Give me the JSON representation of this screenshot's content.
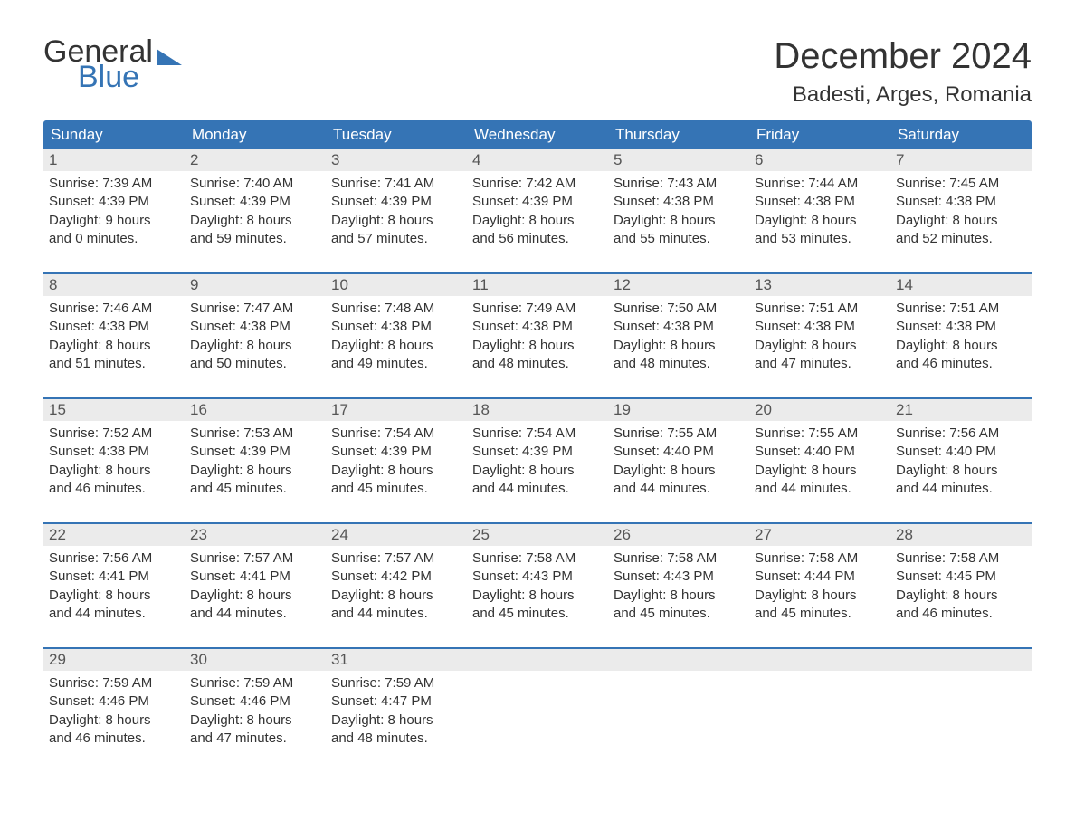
{
  "brand": {
    "general": "General",
    "blue": "Blue"
  },
  "title": "December 2024",
  "location": "Badesti, Arges, Romania",
  "colors": {
    "header_bg": "#3574b5",
    "header_text": "#ffffff",
    "daynum_bg": "#ebebeb",
    "week_border": "#3574b5",
    "body_text": "#333333",
    "brand_blue": "#3574b5"
  },
  "weekdays": [
    "Sunday",
    "Monday",
    "Tuesday",
    "Wednesday",
    "Thursday",
    "Friday",
    "Saturday"
  ],
  "weeks": [
    [
      {
        "num": "1",
        "sunrise": "Sunrise: 7:39 AM",
        "sunset": "Sunset: 4:39 PM",
        "dl1": "Daylight: 9 hours",
        "dl2": "and 0 minutes."
      },
      {
        "num": "2",
        "sunrise": "Sunrise: 7:40 AM",
        "sunset": "Sunset: 4:39 PM",
        "dl1": "Daylight: 8 hours",
        "dl2": "and 59 minutes."
      },
      {
        "num": "3",
        "sunrise": "Sunrise: 7:41 AM",
        "sunset": "Sunset: 4:39 PM",
        "dl1": "Daylight: 8 hours",
        "dl2": "and 57 minutes."
      },
      {
        "num": "4",
        "sunrise": "Sunrise: 7:42 AM",
        "sunset": "Sunset: 4:39 PM",
        "dl1": "Daylight: 8 hours",
        "dl2": "and 56 minutes."
      },
      {
        "num": "5",
        "sunrise": "Sunrise: 7:43 AM",
        "sunset": "Sunset: 4:38 PM",
        "dl1": "Daylight: 8 hours",
        "dl2": "and 55 minutes."
      },
      {
        "num": "6",
        "sunrise": "Sunrise: 7:44 AM",
        "sunset": "Sunset: 4:38 PM",
        "dl1": "Daylight: 8 hours",
        "dl2": "and 53 minutes."
      },
      {
        "num": "7",
        "sunrise": "Sunrise: 7:45 AM",
        "sunset": "Sunset: 4:38 PM",
        "dl1": "Daylight: 8 hours",
        "dl2": "and 52 minutes."
      }
    ],
    [
      {
        "num": "8",
        "sunrise": "Sunrise: 7:46 AM",
        "sunset": "Sunset: 4:38 PM",
        "dl1": "Daylight: 8 hours",
        "dl2": "and 51 minutes."
      },
      {
        "num": "9",
        "sunrise": "Sunrise: 7:47 AM",
        "sunset": "Sunset: 4:38 PM",
        "dl1": "Daylight: 8 hours",
        "dl2": "and 50 minutes."
      },
      {
        "num": "10",
        "sunrise": "Sunrise: 7:48 AM",
        "sunset": "Sunset: 4:38 PM",
        "dl1": "Daylight: 8 hours",
        "dl2": "and 49 minutes."
      },
      {
        "num": "11",
        "sunrise": "Sunrise: 7:49 AM",
        "sunset": "Sunset: 4:38 PM",
        "dl1": "Daylight: 8 hours",
        "dl2": "and 48 minutes."
      },
      {
        "num": "12",
        "sunrise": "Sunrise: 7:50 AM",
        "sunset": "Sunset: 4:38 PM",
        "dl1": "Daylight: 8 hours",
        "dl2": "and 48 minutes."
      },
      {
        "num": "13",
        "sunrise": "Sunrise: 7:51 AM",
        "sunset": "Sunset: 4:38 PM",
        "dl1": "Daylight: 8 hours",
        "dl2": "and 47 minutes."
      },
      {
        "num": "14",
        "sunrise": "Sunrise: 7:51 AM",
        "sunset": "Sunset: 4:38 PM",
        "dl1": "Daylight: 8 hours",
        "dl2": "and 46 minutes."
      }
    ],
    [
      {
        "num": "15",
        "sunrise": "Sunrise: 7:52 AM",
        "sunset": "Sunset: 4:38 PM",
        "dl1": "Daylight: 8 hours",
        "dl2": "and 46 minutes."
      },
      {
        "num": "16",
        "sunrise": "Sunrise: 7:53 AM",
        "sunset": "Sunset: 4:39 PM",
        "dl1": "Daylight: 8 hours",
        "dl2": "and 45 minutes."
      },
      {
        "num": "17",
        "sunrise": "Sunrise: 7:54 AM",
        "sunset": "Sunset: 4:39 PM",
        "dl1": "Daylight: 8 hours",
        "dl2": "and 45 minutes."
      },
      {
        "num": "18",
        "sunrise": "Sunrise: 7:54 AM",
        "sunset": "Sunset: 4:39 PM",
        "dl1": "Daylight: 8 hours",
        "dl2": "and 44 minutes."
      },
      {
        "num": "19",
        "sunrise": "Sunrise: 7:55 AM",
        "sunset": "Sunset: 4:40 PM",
        "dl1": "Daylight: 8 hours",
        "dl2": "and 44 minutes."
      },
      {
        "num": "20",
        "sunrise": "Sunrise: 7:55 AM",
        "sunset": "Sunset: 4:40 PM",
        "dl1": "Daylight: 8 hours",
        "dl2": "and 44 minutes."
      },
      {
        "num": "21",
        "sunrise": "Sunrise: 7:56 AM",
        "sunset": "Sunset: 4:40 PM",
        "dl1": "Daylight: 8 hours",
        "dl2": "and 44 minutes."
      }
    ],
    [
      {
        "num": "22",
        "sunrise": "Sunrise: 7:56 AM",
        "sunset": "Sunset: 4:41 PM",
        "dl1": "Daylight: 8 hours",
        "dl2": "and 44 minutes."
      },
      {
        "num": "23",
        "sunrise": "Sunrise: 7:57 AM",
        "sunset": "Sunset: 4:41 PM",
        "dl1": "Daylight: 8 hours",
        "dl2": "and 44 minutes."
      },
      {
        "num": "24",
        "sunrise": "Sunrise: 7:57 AM",
        "sunset": "Sunset: 4:42 PM",
        "dl1": "Daylight: 8 hours",
        "dl2": "and 44 minutes."
      },
      {
        "num": "25",
        "sunrise": "Sunrise: 7:58 AM",
        "sunset": "Sunset: 4:43 PM",
        "dl1": "Daylight: 8 hours",
        "dl2": "and 45 minutes."
      },
      {
        "num": "26",
        "sunrise": "Sunrise: 7:58 AM",
        "sunset": "Sunset: 4:43 PM",
        "dl1": "Daylight: 8 hours",
        "dl2": "and 45 minutes."
      },
      {
        "num": "27",
        "sunrise": "Sunrise: 7:58 AM",
        "sunset": "Sunset: 4:44 PM",
        "dl1": "Daylight: 8 hours",
        "dl2": "and 45 minutes."
      },
      {
        "num": "28",
        "sunrise": "Sunrise: 7:58 AM",
        "sunset": "Sunset: 4:45 PM",
        "dl1": "Daylight: 8 hours",
        "dl2": "and 46 minutes."
      }
    ],
    [
      {
        "num": "29",
        "sunrise": "Sunrise: 7:59 AM",
        "sunset": "Sunset: 4:46 PM",
        "dl1": "Daylight: 8 hours",
        "dl2": "and 46 minutes."
      },
      {
        "num": "30",
        "sunrise": "Sunrise: 7:59 AM",
        "sunset": "Sunset: 4:46 PM",
        "dl1": "Daylight: 8 hours",
        "dl2": "and 47 minutes."
      },
      {
        "num": "31",
        "sunrise": "Sunrise: 7:59 AM",
        "sunset": "Sunset: 4:47 PM",
        "dl1": "Daylight: 8 hours",
        "dl2": "and 48 minutes."
      },
      {
        "empty": true
      },
      {
        "empty": true
      },
      {
        "empty": true
      },
      {
        "empty": true
      }
    ]
  ]
}
